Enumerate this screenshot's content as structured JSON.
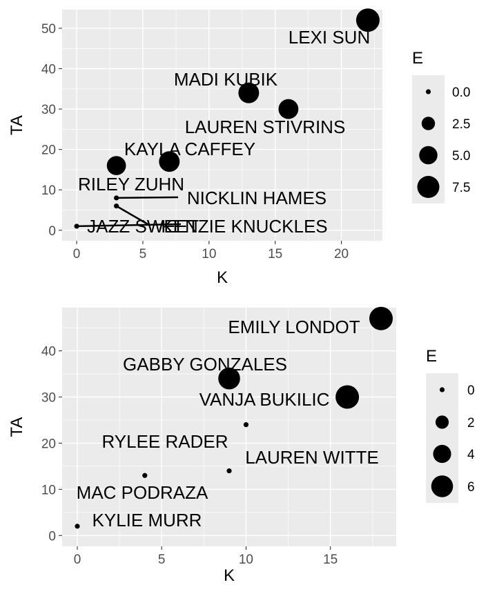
{
  "chart_data": [
    {
      "type": "scatter",
      "xlabel": "K",
      "ylabel": "TA",
      "size_legend_title": "E",
      "xlim": [
        -1.1,
        23.1
      ],
      "ylim": [
        -2.6,
        54.6
      ],
      "x_ticks": [
        0,
        5,
        10,
        15,
        20
      ],
      "y_ticks": [
        0,
        10,
        20,
        30,
        40,
        50
      ],
      "size_legend": [
        0.0,
        2.5,
        5.0,
        7.5
      ],
      "size_legend_labels": [
        "0.0",
        "2.5",
        "5.0",
        "7.5"
      ],
      "size_range": [
        0,
        8.5
      ],
      "points": [
        {
          "name": "LEXI SUN",
          "x": 22,
          "y": 52,
          "size": 8.5
        },
        {
          "name": "MADI KUBIK",
          "x": 13,
          "y": 34,
          "size": 6.5
        },
        {
          "name": "LAUREN STIVRINS",
          "x": 16,
          "y": 30,
          "size": 6
        },
        {
          "name": "KAYLA CAFFEY",
          "x": 7,
          "y": 17,
          "size": 6.5
        },
        {
          "name": "RILEY ZUHN",
          "x": 3,
          "y": 16,
          "size": 5.5
        },
        {
          "name": "NICKLIN HAMES",
          "x": 3,
          "y": 8,
          "size": 0
        },
        {
          "name": "KENZIE KNUCKLES",
          "x": 3,
          "y": 6,
          "size": 0
        },
        {
          "name": "JAZZ SWEET",
          "x": 0,
          "y": 1,
          "size": 0
        }
      ]
    },
    {
      "type": "scatter",
      "xlabel": "K",
      "ylabel": "TA",
      "size_legend_title": "E",
      "xlim": [
        -0.9,
        18.9
      ],
      "ylim": [
        -2.35,
        49.35
      ],
      "x_ticks": [
        0,
        5,
        10,
        15
      ],
      "y_ticks": [
        0,
        10,
        20,
        30,
        40
      ],
      "size_legend": [
        0,
        2,
        4,
        6
      ],
      "size_legend_labels": [
        "0",
        "2",
        "4",
        "6"
      ],
      "size_range": [
        0,
        7
      ],
      "points": [
        {
          "name": "EMILY LONDOT",
          "x": 18,
          "y": 47,
          "size": 7
        },
        {
          "name": "GABBY GONZALES",
          "x": 9,
          "y": 34,
          "size": 6
        },
        {
          "name": "VANJA BUKILIC",
          "x": 16,
          "y": 30,
          "size": 7
        },
        {
          "name": "RYLEE RADER",
          "x": 10,
          "y": 24,
          "size": 0
        },
        {
          "name": "LAUREN WITTE",
          "x": 9,
          "y": 14,
          "size": 0
        },
        {
          "name": "MAC PODRAZA",
          "x": 4,
          "y": 13,
          "size": 0
        },
        {
          "name": "KYLIE MURR",
          "x": 0,
          "y": 2,
          "size": 0
        }
      ]
    }
  ]
}
